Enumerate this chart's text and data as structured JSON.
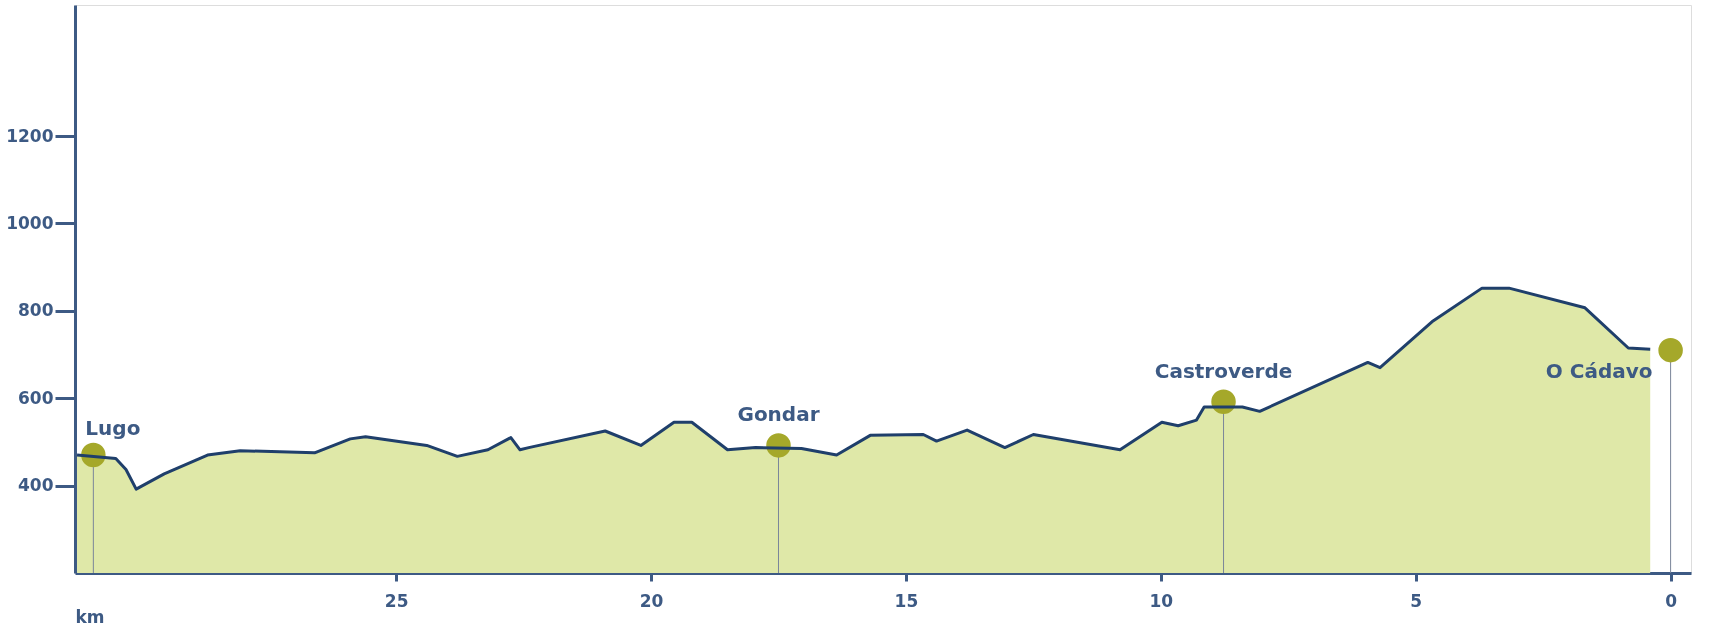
{
  "chart_data": {
    "type": "area",
    "xlabel": "km",
    "xlim": [
      31.3,
      -0.4
    ],
    "xticks": [
      25,
      20,
      15,
      10,
      5,
      0
    ],
    "ylim": [
      200,
      1500
    ],
    "yticks": [
      400,
      600,
      800,
      1000,
      1200
    ],
    "grid": false,
    "series": [
      {
        "color": "#dfe8a8",
        "x": [
          31.26,
          30.5,
          30.3,
          30.1,
          29.55,
          28.7,
          28.06,
          26.6,
          25.9,
          25.6,
          24.4,
          23.8,
          23.2,
          22.75,
          22.57,
          22.4,
          20.9,
          20.2,
          19.55,
          19.2,
          18.5,
          17.95,
          17.05,
          16.36,
          15.7,
          14.66,
          14.4,
          13.8,
          13.06,
          12.5,
          10.8,
          9.98,
          9.66,
          9.3,
          9.15,
          8.4,
          8.06,
          5.94,
          5.7,
          4.66,
          3.7,
          3.17,
          1.68,
          0.83,
          0.4
        ],
        "values": [
          470,
          462,
          437,
          392,
          427,
          470,
          480,
          475,
          507,
          512,
          492,
          467,
          482,
          510,
          482,
          487,
          525,
          492,
          545,
          545,
          482,
          487,
          485,
          470,
          515,
          517,
          502,
          527,
          487,
          517,
          482,
          545,
          537,
          550,
          580,
          580,
          570,
          682,
          670,
          777,
          852,
          852,
          807,
          715,
          712
        ]
      },
      {
        "type": "line",
        "color": "#1f3f6b",
        "x": [
          31.26,
          30.5,
          30.3,
          30.1,
          29.55,
          28.7,
          28.06,
          26.6,
          25.9,
          25.6,
          24.4,
          23.8,
          23.2,
          22.75,
          22.57,
          22.4,
          20.9,
          20.2,
          19.55,
          19.2,
          18.5,
          17.95,
          17.05,
          16.36,
          15.7,
          14.66,
          14.4,
          13.8,
          13.06,
          12.5,
          10.8,
          9.98,
          9.66,
          9.3,
          9.15,
          8.4,
          8.06,
          5.94,
          5.7,
          4.66,
          3.7,
          3.17,
          1.68,
          0.83,
          0.4
        ],
        "values": [
          470,
          462,
          437,
          392,
          427,
          470,
          480,
          475,
          507,
          512,
          492,
          467,
          482,
          510,
          482,
          487,
          525,
          492,
          545,
          545,
          482,
          487,
          485,
          470,
          515,
          517,
          502,
          527,
          487,
          517,
          482,
          545,
          537,
          550,
          580,
          580,
          570,
          682,
          670,
          777,
          852,
          852,
          807,
          715,
          712
        ]
      },
      {
        "type": "scatter",
        "color": "#a5a82a",
        "x": [
          30.94,
          17.5,
          8.77,
          0.0
        ],
        "values": [
          470,
          492,
          592,
          710
        ]
      }
    ],
    "annotations": [
      {
        "text": "Lugo",
        "x": 30.94,
        "y": 470
      },
      {
        "text": "Gondar",
        "x": 17.5,
        "y": 492
      },
      {
        "text": "Castroverde",
        "x": 8.77,
        "y": 592
      },
      {
        "text": "O Cádavo",
        "x": 0.0,
        "y": 710
      }
    ]
  }
}
